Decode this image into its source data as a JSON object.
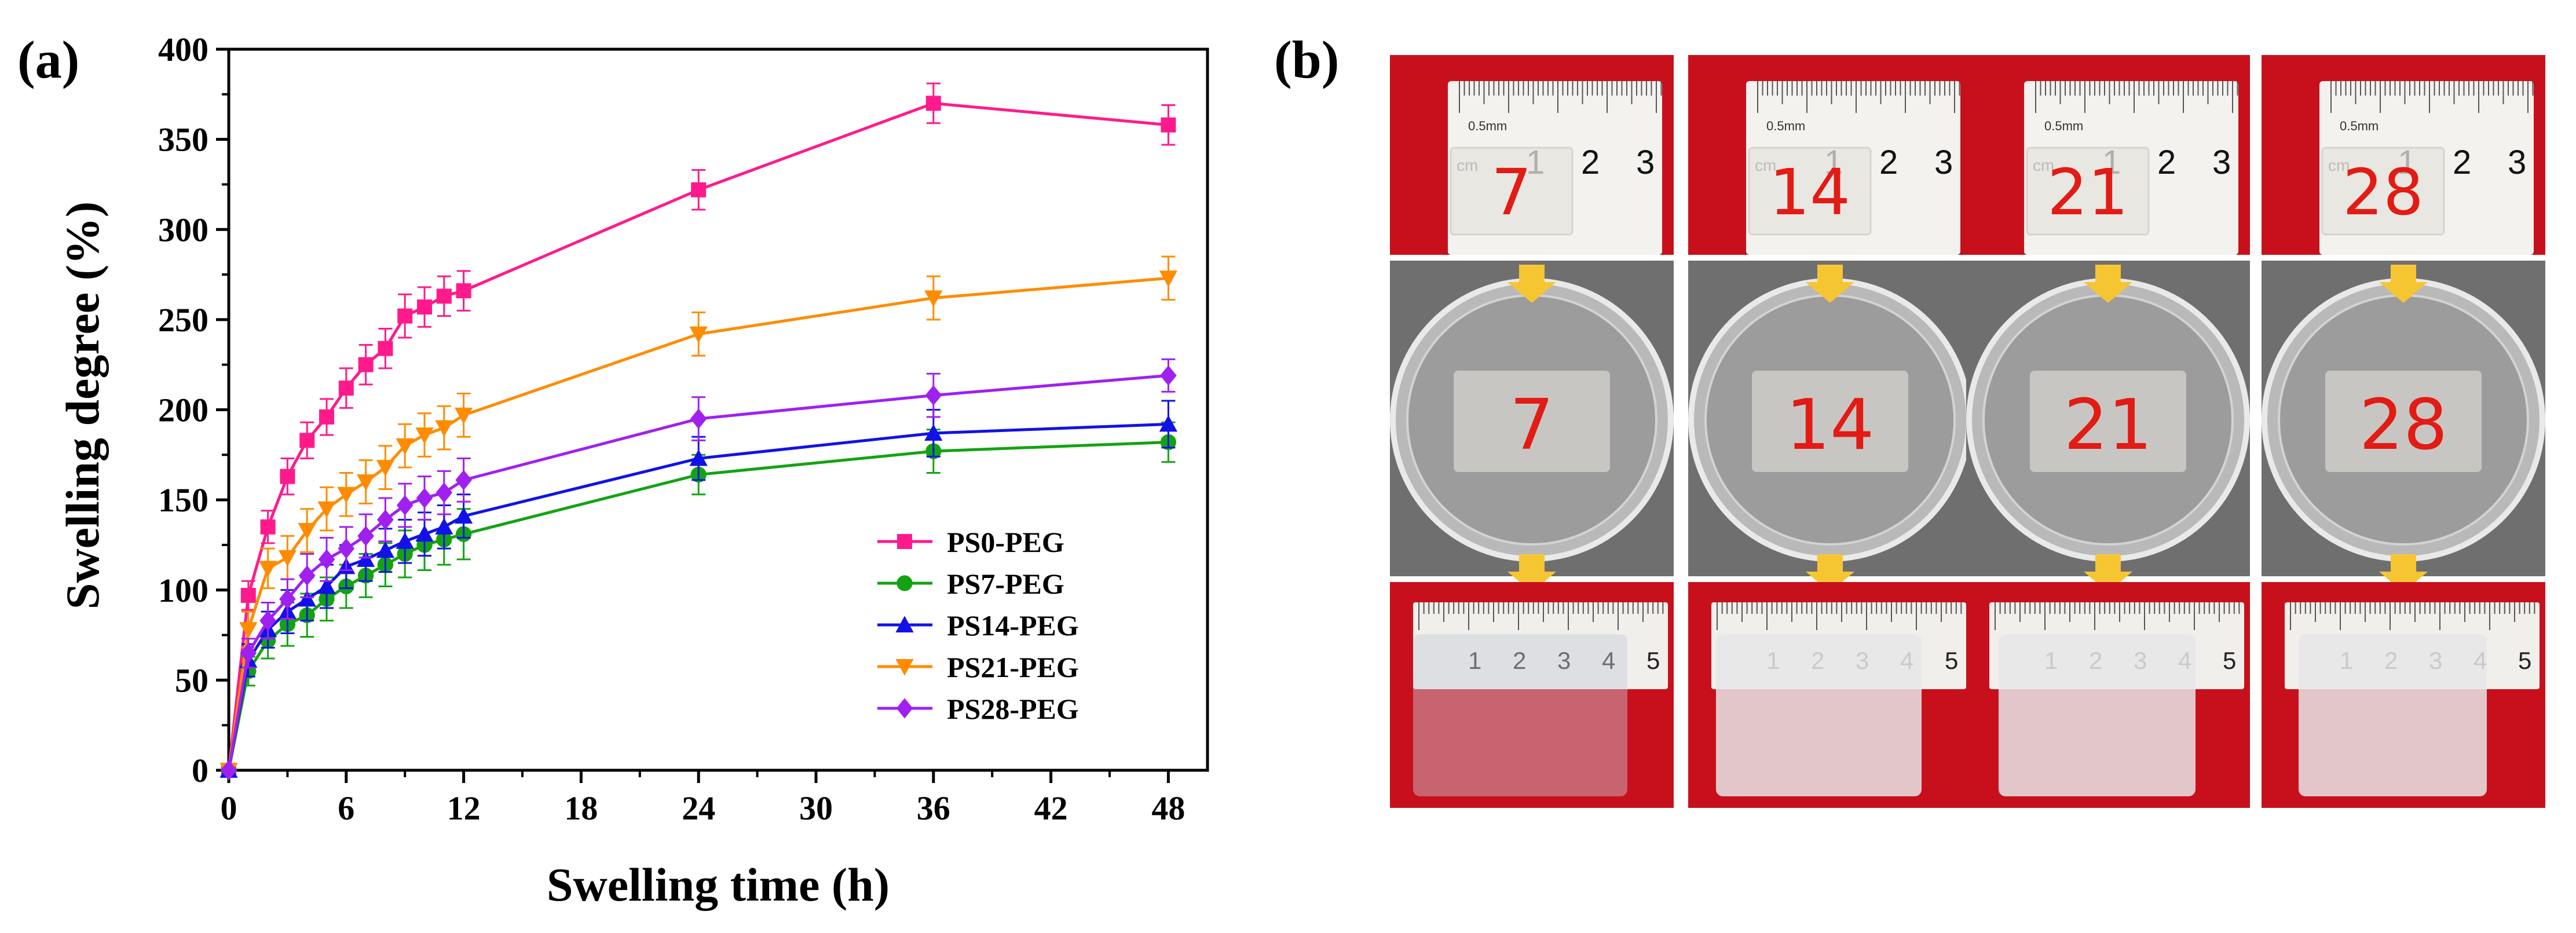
{
  "panel_a_label": "(a)",
  "panel_b_label": "(b)",
  "chart_data": {
    "type": "line",
    "title": "",
    "xlabel": "Swelling time (h)",
    "ylabel": "Swelling degree (%)",
    "xlim": [
      0,
      50
    ],
    "ylim": [
      0,
      400
    ],
    "xticks": [
      0,
      6,
      12,
      18,
      24,
      30,
      36,
      42,
      48
    ],
    "yticks": [
      0,
      50,
      100,
      150,
      200,
      250,
      300,
      350,
      400
    ],
    "x": [
      0,
      1,
      2,
      3,
      4,
      5,
      6,
      7,
      8,
      9,
      10,
      11,
      12,
      24,
      36,
      48
    ],
    "legend_position": "lower-right",
    "series": [
      {
        "name": "PS0-PEG",
        "color": "#ff1a8c",
        "marker": "square",
        "values": [
          0,
          97,
          135,
          163,
          183,
          196,
          212,
          225,
          234,
          252,
          257,
          263,
          266,
          322,
          370,
          358
        ],
        "errors": [
          0,
          8,
          9,
          10,
          10,
          10,
          11,
          11,
          11,
          12,
          11,
          11,
          11,
          11,
          11,
          11
        ]
      },
      {
        "name": "PS7-PEG",
        "color": "#13a312",
        "marker": "circle",
        "values": [
          0,
          55,
          72,
          81,
          86,
          95,
          102,
          108,
          114,
          120,
          125,
          128,
          131,
          164,
          177,
          182
        ],
        "errors": [
          0,
          8,
          10,
          12,
          12,
          12,
          12,
          12,
          12,
          13,
          14,
          14,
          14,
          11,
          12,
          11
        ]
      },
      {
        "name": "PS14-PEG",
        "color": "#1212e6",
        "marker": "triangle-up",
        "values": [
          0,
          61,
          78,
          88,
          95,
          102,
          113,
          117,
          122,
          127,
          131,
          135,
          141,
          173,
          187,
          192
        ],
        "errors": [
          0,
          9,
          10,
          12,
          12,
          12,
          12,
          12,
          12,
          12,
          12,
          12,
          12,
          12,
          13,
          13
        ]
      },
      {
        "name": "PS21-PEG",
        "color": "#ff8c00",
        "marker": "triangle-down",
        "values": [
          0,
          78,
          112,
          118,
          133,
          145,
          153,
          160,
          168,
          180,
          186,
          190,
          197,
          242,
          262,
          273
        ],
        "errors": [
          0,
          10,
          11,
          12,
          12,
          12,
          12,
          12,
          12,
          12,
          12,
          12,
          12,
          12,
          12,
          12
        ]
      },
      {
        "name": "PS28-PEG",
        "color": "#a020f0",
        "marker": "diamond",
        "values": [
          0,
          65,
          83,
          95,
          108,
          117,
          123,
          130,
          139,
          147,
          151,
          154,
          161,
          195,
          208,
          219
        ],
        "errors": [
          0,
          8,
          10,
          11,
          12,
          12,
          12,
          12,
          12,
          12,
          12,
          12,
          12,
          12,
          12,
          9
        ]
      }
    ]
  },
  "photos": {
    "samples": [
      "7",
      "14",
      "21",
      "28"
    ],
    "ruler_unit": "cm",
    "ruler_scale_label": "0.5mm",
    "ruler_top_numbers": [
      "1",
      "2",
      "3"
    ],
    "ruler_bottom_numbers": [
      "1",
      "2",
      "3",
      "4",
      "5"
    ],
    "colors": {
      "red_bg": "#c8101c",
      "gel_clear": "#e6e4df",
      "gel_swollen": "#dcd8d4",
      "arrow": "#f6c632"
    }
  }
}
